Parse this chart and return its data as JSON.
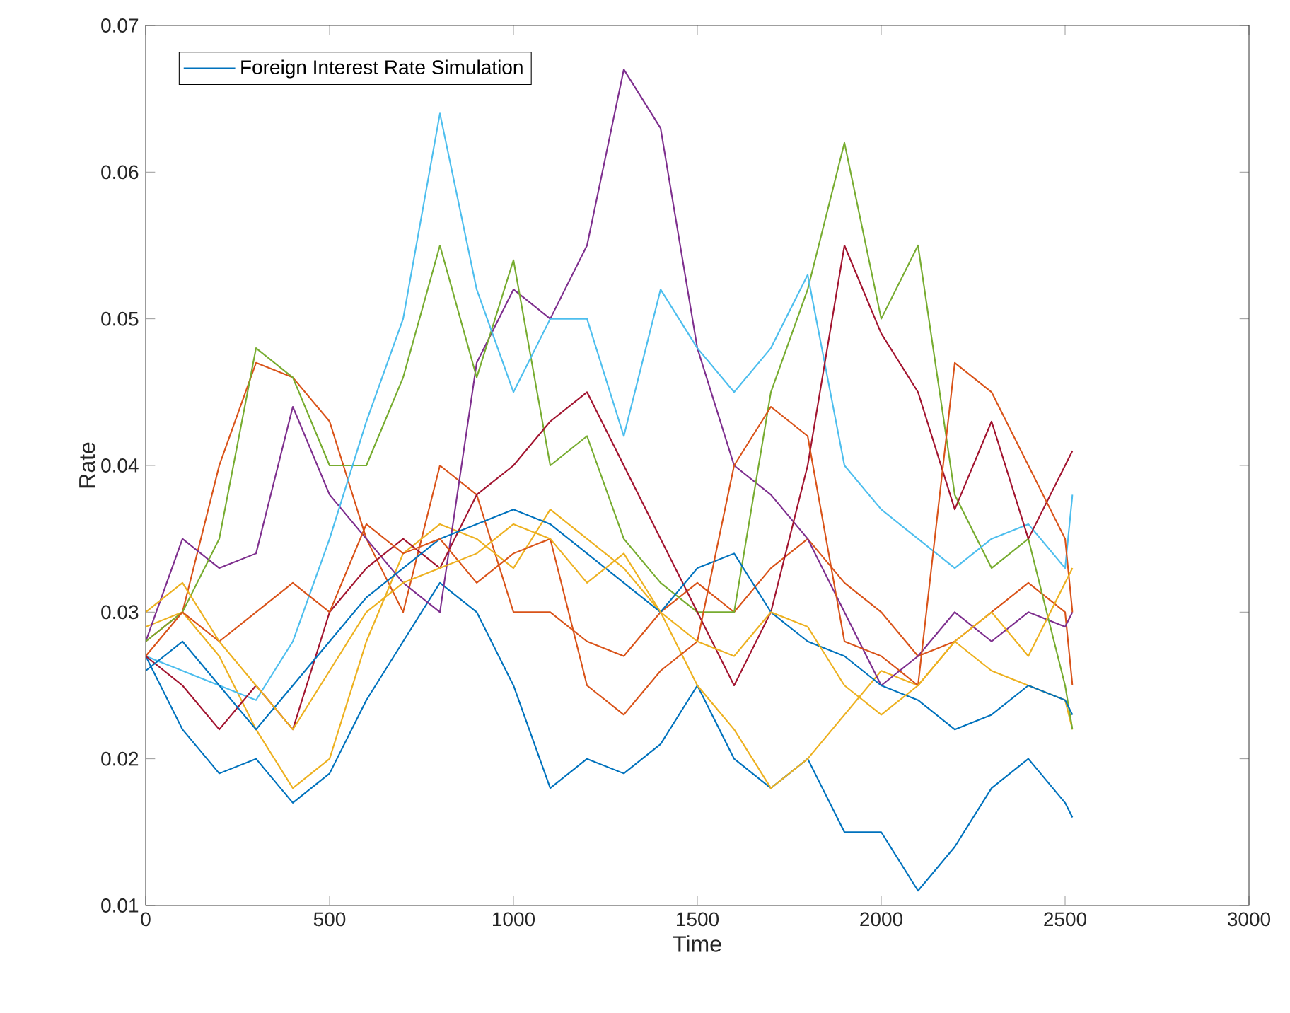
{
  "chart_data": {
    "type": "line",
    "xlabel": "Time",
    "ylabel": "Rate",
    "legend": "top left",
    "x": [
      0,
      100,
      200,
      300,
      400,
      500,
      600,
      700,
      800,
      900,
      1000,
      1100,
      1200,
      1300,
      1400,
      1500,
      1600,
      1700,
      1800,
      1900,
      2000,
      2100,
      2200,
      2300,
      2400,
      2500,
      2520
    ],
    "xlim": [
      0,
      3000
    ],
    "xticks": [
      0,
      500,
      1000,
      1500,
      2000,
      2500,
      3000
    ],
    "ylim": [
      0.01,
      0.07
    ],
    "yticks": [
      0.01,
      0.02,
      0.03,
      0.04,
      0.05,
      0.06,
      0.07
    ],
    "series": [
      {
        "name": "Foreign  Interest Rate Simulation",
        "color": "#0072bd",
        "values": [
          0.027,
          0.022,
          0.019,
          0.02,
          0.017,
          0.019,
          0.024,
          0.028,
          0.032,
          0.03,
          0.025,
          0.018,
          0.02,
          0.019,
          0.021,
          0.025,
          0.02,
          0.018,
          0.02,
          0.015,
          0.015,
          0.011,
          0.014,
          0.018,
          0.02,
          0.017,
          0.016
        ]
      },
      {
        "color": "#d95319",
        "values": [
          0.028,
          0.03,
          0.04,
          0.047,
          0.046,
          0.043,
          0.035,
          0.03,
          0.04,
          0.038,
          0.03,
          0.03,
          0.028,
          0.027,
          0.03,
          0.032,
          0.03,
          0.033,
          0.035,
          0.032,
          0.03,
          0.027,
          0.028,
          0.03,
          0.032,
          0.03,
          0.025
        ]
      },
      {
        "color": "#edb120",
        "values": [
          0.029,
          0.03,
          0.027,
          0.022,
          0.018,
          0.02,
          0.028,
          0.034,
          0.036,
          0.035,
          0.033,
          0.037,
          0.035,
          0.033,
          0.03,
          0.025,
          0.022,
          0.018,
          0.02,
          0.023,
          0.026,
          0.025,
          0.028,
          0.026,
          0.025,
          0.024,
          0.022
        ]
      },
      {
        "color": "#7e2f8e",
        "values": [
          0.028,
          0.035,
          0.033,
          0.034,
          0.044,
          0.038,
          0.035,
          0.032,
          0.03,
          0.047,
          0.052,
          0.05,
          0.055,
          0.067,
          0.063,
          0.048,
          0.04,
          0.038,
          0.035,
          0.03,
          0.025,
          0.027,
          0.03,
          0.028,
          0.03,
          0.029,
          0.03
        ]
      },
      {
        "color": "#77ac30",
        "values": [
          0.028,
          0.03,
          0.035,
          0.048,
          0.046,
          0.04,
          0.04,
          0.046,
          0.055,
          0.046,
          0.054,
          0.04,
          0.042,
          0.035,
          0.032,
          0.03,
          0.03,
          0.045,
          0.052,
          0.062,
          0.05,
          0.055,
          0.038,
          0.033,
          0.035,
          0.025,
          0.022
        ]
      },
      {
        "color": "#4dbeee",
        "values": [
          0.027,
          0.026,
          0.025,
          0.024,
          0.028,
          0.035,
          0.043,
          0.05,
          0.064,
          0.052,
          0.045,
          0.05,
          0.05,
          0.042,
          0.052,
          0.048,
          0.045,
          0.048,
          0.053,
          0.04,
          0.037,
          0.035,
          0.033,
          0.035,
          0.036,
          0.033,
          0.038
        ]
      },
      {
        "color": "#a2142f",
        "values": [
          0.027,
          0.025,
          0.022,
          0.025,
          0.022,
          0.03,
          0.033,
          0.035,
          0.033,
          0.038,
          0.04,
          0.043,
          0.045,
          0.04,
          0.035,
          0.03,
          0.025,
          0.03,
          0.04,
          0.055,
          0.049,
          0.045,
          0.037,
          0.043,
          0.035,
          0.04,
          0.041
        ]
      },
      {
        "color": "#0072bd",
        "values": [
          0.026,
          0.028,
          0.025,
          0.022,
          0.025,
          0.028,
          0.031,
          0.033,
          0.035,
          0.036,
          0.037,
          0.036,
          0.034,
          0.032,
          0.03,
          0.033,
          0.034,
          0.03,
          0.028,
          0.027,
          0.025,
          0.024,
          0.022,
          0.023,
          0.025,
          0.024,
          0.023
        ]
      },
      {
        "color": "#d95319",
        "values": [
          0.027,
          0.03,
          0.028,
          0.03,
          0.032,
          0.03,
          0.036,
          0.034,
          0.035,
          0.032,
          0.034,
          0.035,
          0.025,
          0.023,
          0.026,
          0.028,
          0.04,
          0.044,
          0.042,
          0.028,
          0.027,
          0.025,
          0.047,
          0.045,
          0.04,
          0.035,
          0.03
        ]
      },
      {
        "color": "#edb120",
        "values": [
          0.03,
          0.032,
          0.028,
          0.025,
          0.022,
          0.026,
          0.03,
          0.032,
          0.033,
          0.034,
          0.036,
          0.035,
          0.032,
          0.034,
          0.03,
          0.028,
          0.027,
          0.03,
          0.029,
          0.025,
          0.023,
          0.025,
          0.028,
          0.03,
          0.027,
          0.032,
          0.033
        ]
      }
    ]
  }
}
